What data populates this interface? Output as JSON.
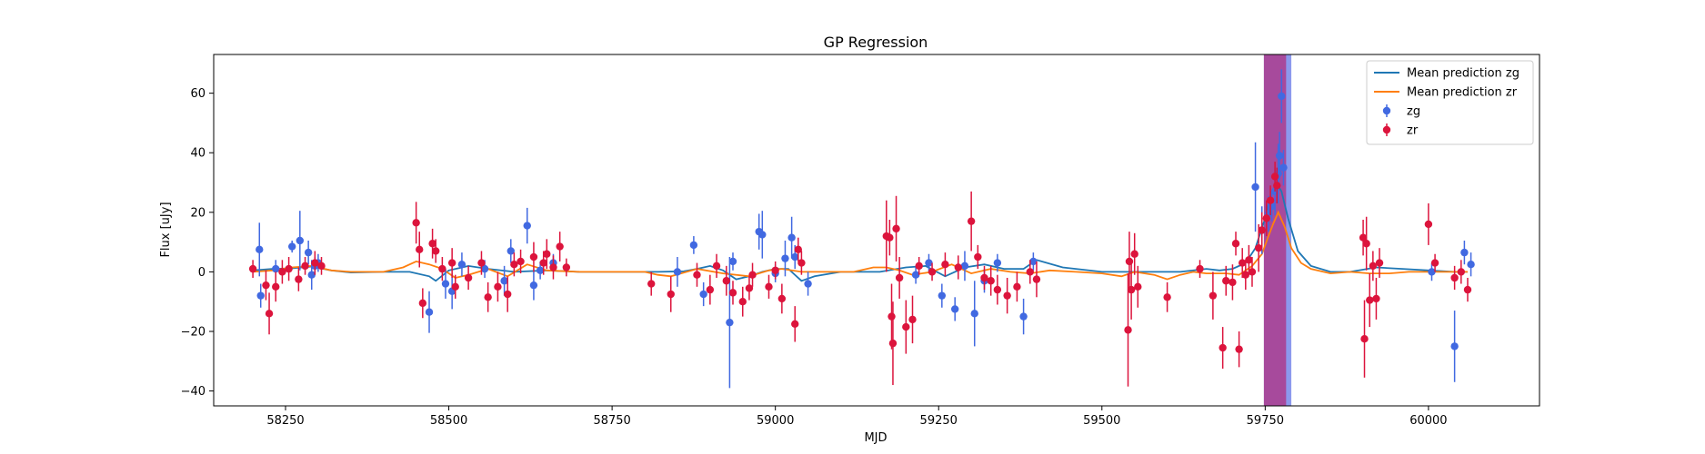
{
  "chart_data": {
    "type": "scatter",
    "title": "GP Regression",
    "xlabel": "MJD",
    "ylabel": "Flux [uJy]",
    "xlim": [
      58140,
      60170
    ],
    "ylim": [
      -45,
      73
    ],
    "xticks": [
      58250,
      58500,
      58750,
      59000,
      59250,
      59500,
      59750,
      60000
    ],
    "yticks": [
      -40,
      -20,
      0,
      20,
      40,
      60
    ],
    "grid": false,
    "legend_position": "top-right",
    "colors": {
      "zg_line": "#1f77b4",
      "zr_line": "#ff7f0e",
      "zg_points": "#4169e1",
      "zr_points": "#dc143c",
      "span_zr": "#b03080",
      "span_zg": "#6f7fe8"
    },
    "legend": [
      {
        "label": "Mean prediction zg",
        "kind": "line",
        "color": "#1f77b4"
      },
      {
        "label": "Mean prediction zr",
        "kind": "line",
        "color": "#ff7f0e"
      },
      {
        "label": "zg",
        "kind": "errorbar",
        "color": "#4169e1"
      },
      {
        "label": "zr",
        "kind": "errorbar",
        "color": "#dc143c"
      }
    ],
    "spans": [
      {
        "x0": 59748,
        "x1": 59790,
        "color": "#6f7fe8",
        "opacity": 0.8
      },
      {
        "x0": 59748,
        "x1": 59782,
        "color": "#b03080",
        "opacity": 0.75
      }
    ],
    "series": [
      {
        "name": "Mean prediction zg",
        "kind": "line",
        "color": "#1f77b4",
        "x": [
          58200,
          58230,
          58260,
          58290,
          58320,
          58350,
          58400,
          58440,
          58470,
          58480,
          58500,
          58530,
          58560,
          58600,
          58650,
          58700,
          58760,
          58820,
          58860,
          58880,
          58900,
          58920,
          58940,
          58960,
          58980,
          59000,
          59020,
          59040,
          59060,
          59100,
          59160,
          59200,
          59230,
          59260,
          59290,
          59320,
          59350,
          59380,
          59400,
          59440,
          59500,
          59560,
          59620,
          59660,
          59680,
          59700,
          59720,
          59735,
          59750,
          59760,
          59768,
          59775,
          59785,
          59800,
          59820,
          59850,
          59880,
          59920,
          59960,
          60000,
          60040,
          60060
        ],
        "y": [
          0.5,
          1.0,
          1.2,
          1.8,
          0.5,
          -0.2,
          0,
          0,
          -1.5,
          -3.0,
          0.5,
          2.0,
          1.0,
          0,
          0.5,
          0,
          0,
          0,
          0.2,
          1.0,
          2.0,
          0.5,
          -2.5,
          -1.5,
          0,
          1.0,
          1.0,
          -3.0,
          -1.5,
          0,
          0,
          1.5,
          2.0,
          -1.5,
          1.5,
          2.5,
          1.0,
          1.0,
          4.0,
          1.5,
          0,
          0,
          0,
          1.0,
          0.5,
          1.0,
          3.0,
          8.0,
          18.0,
          27.0,
          29.5,
          27.0,
          18.0,
          7.0,
          2.0,
          0,
          0,
          1.5,
          1.0,
          0.5,
          0,
          0
        ]
      },
      {
        "name": "Mean prediction zr",
        "kind": "line",
        "color": "#ff7f0e",
        "x": [
          58200,
          58230,
          58260,
          58290,
          58320,
          58350,
          58400,
          58430,
          58450,
          58470,
          58490,
          58510,
          58530,
          58560,
          58590,
          58620,
          58650,
          58700,
          58760,
          58800,
          58820,
          58840,
          58880,
          58920,
          58960,
          58990,
          59010,
          59040,
          59080,
          59120,
          59150,
          59170,
          59190,
          59210,
          59240,
          59270,
          59300,
          59330,
          59360,
          59390,
          59420,
          59460,
          59500,
          59530,
          59550,
          59580,
          59600,
          59620,
          59640,
          59660,
          59690,
          59710,
          59730,
          59745,
          59755,
          59762,
          59770,
          59780,
          59790,
          59805,
          59820,
          59850,
          59880,
          59910,
          59940,
          59970,
          60000,
          60030,
          60060
        ],
        "y": [
          0,
          0.5,
          1.5,
          2.0,
          0.5,
          0,
          0,
          1.5,
          3.5,
          2.5,
          1.0,
          -2.0,
          -1.0,
          1.0,
          -1.5,
          2.5,
          0.5,
          0,
          0,
          0,
          -1.0,
          -1.5,
          1.0,
          -0.5,
          -1.5,
          0.5,
          1.0,
          0,
          0,
          0,
          1.5,
          1.5,
          0.5,
          -1.0,
          0,
          2.5,
          -0.5,
          1.0,
          0,
          -0.5,
          0.5,
          0,
          -0.5,
          -1.5,
          0,
          -1.0,
          -2.5,
          -1.0,
          0,
          -0.5,
          -0.5,
          -1.0,
          2.0,
          6.0,
          12.0,
          16.0,
          20.0,
          15.0,
          8.0,
          3.0,
          1.0,
          -0.5,
          0,
          -0.5,
          -0.5,
          0,
          0,
          0,
          0
        ]
      },
      {
        "name": "zg",
        "kind": "errorbar",
        "color": "#4169e1",
        "x": [
          58210,
          58212,
          58235,
          58260,
          58272,
          58285,
          58290,
          58295,
          58300,
          58470,
          58495,
          58505,
          58520,
          58555,
          58585,
          58595,
          58620,
          58630,
          58640,
          58660,
          58850,
          58875,
          58890,
          58930,
          58935,
          58975,
          58980,
          59000,
          59015,
          59025,
          59030,
          59050,
          59215,
          59235,
          59255,
          59275,
          59290,
          59305,
          59320,
          59340,
          59380,
          59395,
          59735,
          59745,
          59755,
          59760,
          59765,
          59770,
          59772,
          59775,
          59778,
          60005,
          60040,
          60055,
          60065
        ],
        "y": [
          7.5,
          -8.0,
          1.0,
          8.5,
          10.5,
          6.5,
          -1.0,
          2.0,
          3.0,
          -13.5,
          -4.0,
          -6.5,
          2.5,
          1.0,
          -3.0,
          7.0,
          15.5,
          -4.5,
          0.5,
          3.0,
          0.0,
          9.0,
          -7.5,
          -17.0,
          3.5,
          13.5,
          12.5,
          -0.5,
          4.5,
          11.5,
          5.0,
          -4.0,
          -1.0,
          3.0,
          -8.0,
          -12.5,
          2.0,
          -14.0,
          -3.0,
          3.0,
          -15.0,
          3.5,
          28.5,
          14.0,
          19.5,
          22.0,
          27.0,
          33.0,
          39.0,
          59.0,
          35.0,
          0.0,
          -25.0,
          6.5,
          2.5
        ],
        "yerr": [
          9,
          4,
          3,
          2,
          10,
          4,
          5,
          3,
          3,
          7,
          5,
          6,
          4,
          3,
          5,
          4,
          6,
          5,
          3,
          3,
          5,
          3,
          4,
          22,
          3,
          6,
          8,
          3,
          6,
          7,
          4,
          4,
          3,
          3,
          4,
          4,
          5,
          11,
          4,
          3,
          6,
          3,
          15,
          8,
          6,
          5,
          8,
          10,
          8,
          9,
          6,
          3,
          12,
          4,
          4
        ]
      },
      {
        "name": "zr",
        "kind": "errorbar",
        "color": "#dc143c",
        "x": [
          58200,
          58220,
          58225,
          58235,
          58245,
          58255,
          58270,
          58280,
          58295,
          58305,
          58450,
          58455,
          58460,
          58475,
          58480,
          58490,
          58505,
          58510,
          58530,
          58550,
          58560,
          58575,
          58590,
          58600,
          58610,
          58630,
          58645,
          58650,
          58660,
          58670,
          58680,
          58810,
          58840,
          58880,
          58900,
          58910,
          58925,
          58935,
          58950,
          58960,
          58965,
          58990,
          59000,
          59010,
          59030,
          59035,
          59040,
          59170,
          59175,
          59178,
          59180,
          59185,
          59190,
          59200,
          59210,
          59220,
          59240,
          59260,
          59280,
          59300,
          59310,
          59320,
          59330,
          59340,
          59355,
          59370,
          59390,
          59400,
          59540,
          59542,
          59545,
          59550,
          59555,
          59600,
          59650,
          59670,
          59685,
          59690,
          59700,
          59705,
          59710,
          59715,
          59720,
          59725,
          59730,
          59740,
          59745,
          59752,
          59758,
          59765,
          59768,
          59900,
          59902,
          59905,
          59910,
          59915,
          59920,
          59925,
          60000,
          60010,
          60040,
          60050,
          60060
        ],
        "y": [
          1.0,
          -4.5,
          -14.0,
          -5.0,
          0.0,
          1.0,
          -2.5,
          2.0,
          3.0,
          2.0,
          16.5,
          7.5,
          -10.5,
          9.5,
          7.0,
          1.0,
          3.0,
          -5.0,
          -2.0,
          3.0,
          -8.5,
          -5.0,
          -7.5,
          2.5,
          3.5,
          5.0,
          3.0,
          6.0,
          1.5,
          8.5,
          1.5,
          -4.0,
          -7.5,
          -1.0,
          -6.0,
          2.0,
          -3.0,
          -7.0,
          -10.0,
          -5.5,
          -1.0,
          -5.0,
          0.5,
          -9.0,
          -17.5,
          7.5,
          3.0,
          12.0,
          11.5,
          -15.0,
          -24.0,
          14.5,
          -2.0,
          -18.5,
          -16.0,
          2.0,
          0.0,
          2.5,
          1.5,
          17.0,
          5.0,
          -2.0,
          -3.0,
          -6.0,
          -8.0,
          -5.0,
          0.0,
          -2.5,
          -19.5,
          3.5,
          -6.0,
          6.0,
          -5.0,
          -8.5,
          1.0,
          -8.0,
          -25.5,
          -3.0,
          -3.5,
          9.5,
          -26.0,
          3.0,
          -1.0,
          4.0,
          0.0,
          8.0,
          14.0,
          18.0,
          24.0,
          32.0,
          29.0,
          11.5,
          -22.5,
          9.5,
          -9.5,
          2.0,
          -9.0,
          3.0,
          16.0,
          3.0,
          -2.0,
          0.0,
          -6.0
        ],
        "yerr": [
          3,
          5,
          7,
          5,
          4,
          4,
          4,
          3,
          4,
          3,
          7,
          6,
          5,
          5,
          4,
          4,
          5,
          4,
          4,
          4,
          5,
          5,
          6,
          4,
          4,
          5,
          4,
          5,
          4,
          5,
          3,
          4,
          6,
          4,
          5,
          4,
          5,
          4,
          5,
          4,
          4,
          4,
          3,
          5,
          6,
          4,
          4,
          12,
          6,
          11,
          14,
          11,
          7,
          9,
          8,
          3,
          3,
          4,
          4,
          10,
          4,
          4,
          5,
          5,
          6,
          5,
          4,
          6,
          19,
          10,
          10,
          7,
          7,
          5,
          3,
          8,
          7,
          5,
          6,
          4,
          6,
          5,
          5,
          5,
          5,
          8,
          6,
          6,
          5,
          5,
          6,
          6,
          13,
          9,
          9,
          5,
          7,
          5,
          7,
          3,
          4,
          4,
          4
        ]
      }
    ]
  }
}
